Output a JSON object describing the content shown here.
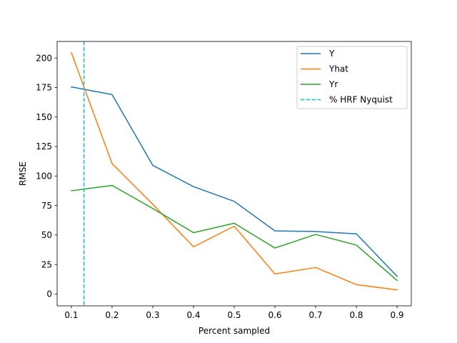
{
  "chart_data": {
    "type": "line",
    "title": "",
    "xlabel": "Percent sampled",
    "ylabel": "RMSE",
    "xlim": [
      0.065,
      0.935
    ],
    "ylim": [
      -10,
      214
    ],
    "xticks": [
      0.1,
      0.2,
      0.3,
      0.4,
      0.5,
      0.6,
      0.7,
      0.8,
      0.9
    ],
    "xtick_labels": [
      "0.1",
      "0.2",
      "0.3",
      "0.4",
      "0.5",
      "0.6",
      "0.7",
      "0.8",
      "0.9"
    ],
    "yticks": [
      0,
      25,
      50,
      75,
      100,
      125,
      150,
      175,
      200
    ],
    "ytick_labels": [
      "0",
      "25",
      "50",
      "75",
      "100",
      "125",
      "150",
      "175",
      "200"
    ],
    "grid": false,
    "legend_position": "top-right",
    "x": [
      0.1,
      0.2,
      0.3,
      0.4,
      0.5,
      0.6,
      0.7,
      0.8,
      0.9
    ],
    "series": [
      {
        "name": "Y",
        "color": "#1f77b4",
        "values": [
          175.5,
          169,
          109,
          91,
          78.5,
          53.5,
          53,
          51,
          15
        ]
      },
      {
        "name": "Yhat",
        "color": "#ff7f0e",
        "values": [
          204.5,
          110.5,
          76,
          40,
          57.5,
          17,
          22.5,
          8,
          3.5
        ]
      },
      {
        "name": "Yr",
        "color": "#2ca02c",
        "values": [
          87.5,
          92,
          72.5,
          52,
          60,
          39,
          50.5,
          41.5,
          11.5
        ]
      }
    ],
    "vlines": [
      {
        "name": "% HRF Nyquist",
        "x": 0.131,
        "color": "#17becf",
        "style": "dashed"
      }
    ]
  }
}
